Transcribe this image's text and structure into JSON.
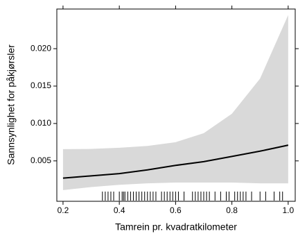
{
  "chart_data": {
    "type": "line",
    "xlabel": "Tamrein pr. kvadratkilometer",
    "ylabel": "Sannsynlighet for påkjørsler",
    "x": [
      0.2,
      0.3,
      0.4,
      0.5,
      0.6,
      0.7,
      0.8,
      0.9,
      1.0
    ],
    "values": [
      0.0027,
      0.003,
      0.0033,
      0.0038,
      0.0044,
      0.0049,
      0.0056,
      0.0063,
      0.0071
    ],
    "upper": [
      0.00657,
      0.0066,
      0.00676,
      0.007,
      0.0075,
      0.0087,
      0.0113,
      0.016,
      0.0245
    ],
    "lower": [
      0.0011,
      0.0015,
      0.0018,
      0.002,
      0.0021,
      0.0021,
      0.0021,
      0.002,
      0.002
    ],
    "rug": [
      0.34,
      0.35,
      0.36,
      0.37,
      0.38,
      0.4,
      0.41,
      0.415,
      0.42,
      0.43,
      0.44,
      0.45,
      0.46,
      0.47,
      0.48,
      0.49,
      0.5,
      0.51,
      0.52,
      0.53,
      0.55,
      0.56,
      0.57,
      0.58,
      0.59,
      0.6,
      0.61,
      0.63,
      0.66,
      0.67,
      0.68,
      0.69,
      0.7,
      0.71,
      0.72,
      0.74,
      0.76,
      0.78,
      0.79,
      0.81,
      0.82,
      0.83,
      0.84,
      0.85,
      0.87,
      0.9,
      0.92,
      0.95,
      0.97,
      0.98
    ],
    "color": "#000000",
    "band_color": "#d9d9d9",
    "xlim": [
      0.178,
      1.025
    ],
    "ylim": [
      -0.0004,
      0.0253
    ],
    "xticks": [
      0.2,
      0.4,
      0.6,
      0.8,
      {
        "value": 1,
        "label": "1.0"
      }
    ],
    "yticks": [
      {
        "value": 0.005,
        "label": "0.005"
      },
      {
        "value": 0.01,
        "label": "0.010"
      },
      {
        "value": 0.015,
        "label": "0.015"
      },
      {
        "value": 0.02,
        "label": "0.020"
      }
    ]
  }
}
